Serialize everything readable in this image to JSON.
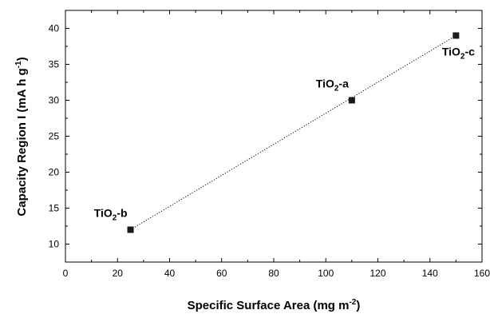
{
  "chart_data": {
    "type": "scatter",
    "title": "",
    "xlabel": {
      "main": "Specific Surface Area (mg m",
      "sup": "-2",
      "end": ")"
    },
    "ylabel": {
      "main": "Capacity Region I (mA h g",
      "sup": "-1",
      "end": ")"
    },
    "xlim": [
      0,
      160
    ],
    "ylim": [
      7.5,
      42.5
    ],
    "xticks": [
      0,
      20,
      40,
      60,
      80,
      100,
      120,
      140,
      160
    ],
    "yticks": [
      10,
      15,
      20,
      25,
      30,
      35,
      40
    ],
    "grid": false,
    "trendline": {
      "style": "dotted",
      "from": [
        25,
        12
      ],
      "to": [
        150,
        39
      ]
    },
    "points": [
      {
        "x": 25,
        "y": 12,
        "label": {
          "base": "TiO",
          "sub": "2",
          "rest": "-b"
        },
        "label_pos": "above-left"
      },
      {
        "x": 110,
        "y": 30,
        "label": {
          "base": "TiO",
          "sub": "2",
          "rest": "-a"
        },
        "label_pos": "above-left"
      },
      {
        "x": 150,
        "y": 39,
        "label": {
          "base": "TiO",
          "sub": "2",
          "rest": "-c"
        },
        "label_pos": "below"
      }
    ],
    "marker": "square",
    "marker_color": "#1a1a1a"
  }
}
